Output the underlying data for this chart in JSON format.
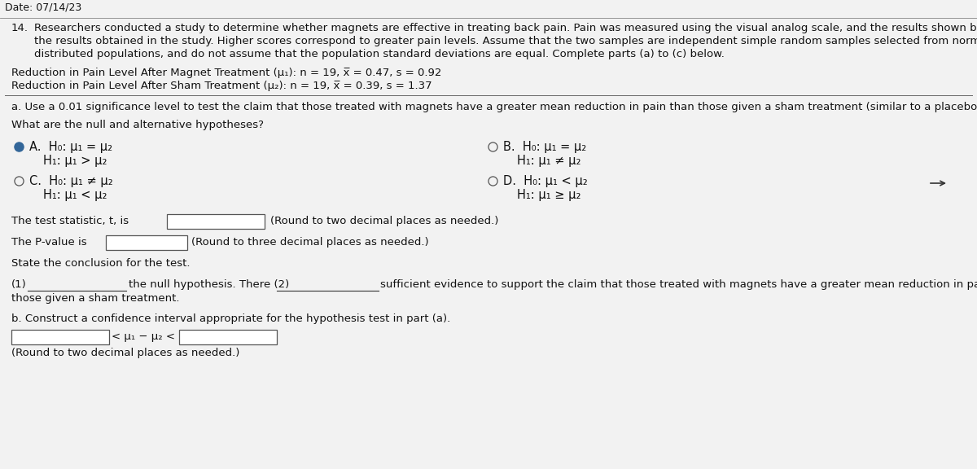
{
  "bg_color": "#e8e8e8",
  "bg_main": "#f2f2f2",
  "white_color": "#ffffff",
  "text_color": "#111111",
  "dark_gray": "#111111",
  "header_date": "Date: 07/14/23",
  "question_number": "14.",
  "q_line1": "Researchers conducted a study to determine whether magnets are effective in treating back pain. Pain was measured using the visual analog scale, and the results shown below are among",
  "q_line2": "the results obtained in the study. Higher scores correspond to greater pain levels. Assume that the two samples are independent simple random samples selected from normally",
  "q_line3": "distributed populations, and do not assume that the population standard deviations are equal. Complete parts (a) to (c) below.",
  "data_line1": "Reduction in Pain Level After Magnet Treatment (μ₁): n = 19, x̅ = 0.47, s = 0.92",
  "data_line2": "Reduction in Pain Level After Sham Treatment (μ₂): n = 19, x̅ = 0.39, s = 1.37",
  "part_a_text": "a. Use a 0.01 significance level to test the claim that those treated with magnets have a greater mean reduction in pain than those given a sham treatment (similar to a placebo).",
  "hypotheses_question": "What are the null and alternative hypotheses?",
  "optA1": "H₀: μ₁ = μ₂",
  "optA2": "H₁: μ₁ > μ₂",
  "optB1": "H₀: μ₁ = μ₂",
  "optB2": "H₁: μ₁ ≠ μ₂",
  "optC1": "H₀: μ₁ ≠ μ₂",
  "optC2": "H₁: μ₁ < μ₂",
  "optD1": "H₀: μ₁ < μ₂",
  "optD2": "H₁: μ₁ ≥ μ₂",
  "test_stat_text": "The test statistic, t, is",
  "test_stat_suffix": "(Round to two decimal places as needed.)",
  "pvalue_text": "The P-value is",
  "pvalue_suffix": "(Round to three decimal places as needed.)",
  "conclusion_header": "State the conclusion for the test.",
  "concl_1": "(1)",
  "concl_mid": "the null hypothesis. There (2)",
  "concl_end": "sufficient evidence to support the claim that those treated with magnets have a greater mean reduction in pain than",
  "conclusion_line2": "those given a sham treatment.",
  "part_b_text": "b. Construct a confidence interval appropriate for the hypothesis test in part (a).",
  "interval_mid": "< μ₁ − μ₂ <",
  "interval_round": "(Round to two decimal places as needed.)"
}
